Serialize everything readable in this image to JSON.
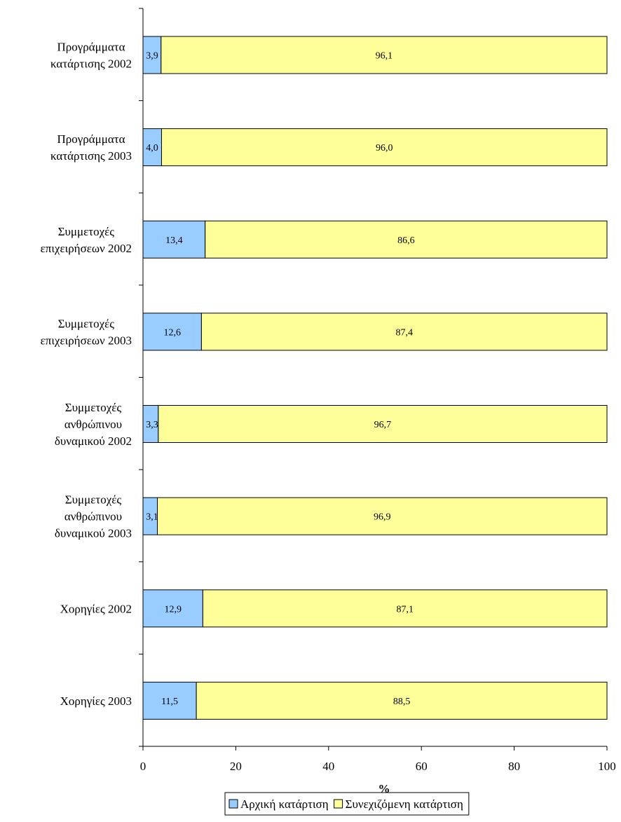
{
  "chart_data": {
    "type": "bar",
    "orientation": "horizontal",
    "stacked": true,
    "categories": [
      [
        "Προγράμματα",
        "κατάρτισης 2002"
      ],
      [
        "Προγράμματα",
        "κατάρτισης 2003"
      ],
      [
        "Συμμετοχές",
        "επιχειρήσεων 2002"
      ],
      [
        "Συμμετοχές",
        "επιχειρήσεων 2003"
      ],
      [
        "Συμμετοχές",
        "ανθρώπινου",
        "δυναμικού 2002"
      ],
      [
        "Συμμετοχές",
        "ανθρώπινου",
        "δυναμικού 2003"
      ],
      [
        "Χορηγίες 2002"
      ],
      [
        "Χορηγίες 2003"
      ]
    ],
    "series": [
      {
        "name": "Αρχική κατάρτιση",
        "color": "#99ccff",
        "values": [
          3.9,
          4.0,
          13.4,
          12.6,
          3.3,
          3.1,
          12.9,
          11.5
        ],
        "labels": [
          "3,9",
          "4,0",
          "13,4",
          "12,6",
          "3,3",
          "3,1",
          "12,9",
          "11,5"
        ]
      },
      {
        "name": "Συνεχιζόμενη κατάρτιση",
        "color": "#ffff99",
        "values": [
          96.1,
          96.0,
          86.6,
          87.4,
          96.7,
          96.9,
          87.1,
          88.5
        ],
        "labels": [
          "96,1",
          "96,0",
          "86,6",
          "87,4",
          "96,7",
          "96,9",
          "87,1",
          "88,5"
        ]
      }
    ],
    "xlabel": "%",
    "ylabel": "",
    "xlim": [
      0,
      100
    ],
    "xticks": [
      0,
      20,
      40,
      60,
      80,
      100
    ],
    "xtick_labels": [
      "0",
      "20",
      "40",
      "60",
      "80",
      "100"
    ],
    "grid": false,
    "legend_position": "bottom"
  }
}
